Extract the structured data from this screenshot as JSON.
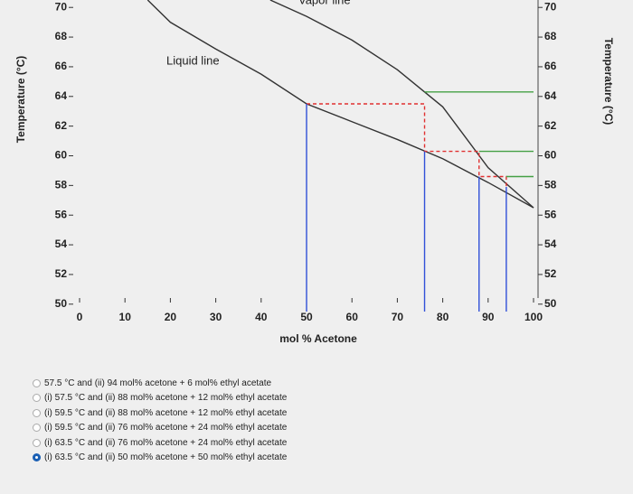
{
  "chart_data": {
    "type": "line",
    "x_label": "mol % Acetone",
    "y_label": "Temperature (°C)",
    "y2_label": "Temperature (°C)",
    "xlim": [
      0,
      100
    ],
    "xticks": [
      0,
      10,
      20,
      30,
      40,
      50,
      60,
      70,
      80,
      90,
      100
    ],
    "ylim": [
      49.5,
      70.5
    ],
    "yticks": [
      50,
      52,
      54,
      56,
      58,
      60,
      62,
      64,
      66,
      68,
      70
    ],
    "y2lim": [
      49.5,
      70.5
    ],
    "y2ticks": [
      50,
      52,
      54,
      56,
      58,
      60,
      62,
      64,
      66,
      68,
      70
    ],
    "series": [
      {
        "name": "Liquid line",
        "color": "#333333",
        "x": [
          15,
          20,
          30,
          40,
          50,
          60,
          70,
          80,
          90,
          100
        ],
        "values": [
          70.5,
          69,
          67.2,
          65.5,
          63.5,
          62.3,
          61.1,
          59.8,
          58.2,
          56.5
        ]
      },
      {
        "name": "Vapor line",
        "color": "#333333",
        "x": [
          42,
          50,
          60,
          70,
          80,
          90,
          100
        ],
        "values": [
          70.5,
          69.4,
          67.8,
          65.8,
          63.3,
          59.2,
          56.5
        ]
      },
      {
        "color": "#e03030",
        "dashed": true,
        "x": [
          50,
          76,
          76,
          88,
          88,
          94,
          94
        ],
        "values": [
          63.5,
          63.5,
          60.3,
          60.3,
          58.6,
          58.6,
          57.9
        ]
      },
      {
        "color": "#44a044",
        "x": [
          76,
          100
        ],
        "values": [
          64.3,
          64.3
        ]
      },
      {
        "color": "#44a044",
        "x": [
          88,
          100
        ],
        "values": [
          60.3,
          60.3
        ]
      },
      {
        "color": "#44a044",
        "x": [
          94,
          100
        ],
        "values": [
          58.6,
          58.6
        ]
      },
      {
        "color": "#3050d8",
        "x": [
          50,
          50
        ],
        "values": [
          63.5,
          49.5
        ]
      },
      {
        "color": "#3050d8",
        "x": [
          76,
          76
        ],
        "values": [
          60.3,
          49.5
        ]
      },
      {
        "color": "#3050d8",
        "x": [
          88,
          88
        ],
        "values": [
          58.6,
          49.5
        ]
      },
      {
        "color": "#3050d8",
        "x": [
          94,
          94
        ],
        "values": [
          57.9,
          49.5
        ]
      }
    ]
  },
  "options": [
    {
      "label": "57.5 °C and (ii) 94 mol% acetone + 6 mol% ethyl acetate",
      "selected": false
    },
    {
      "label": "(i) 57.5 °C and (ii) 88 mol% acetone + 12 mol% ethyl acetate",
      "selected": false
    },
    {
      "label": "(i) 59.5 °C and (ii) 88 mol% acetone + 12 mol% ethyl acetate",
      "selected": false
    },
    {
      "label": "(i) 59.5 °C and (ii) 76 mol% acetone + 24 mol% ethyl acetate",
      "selected": false
    },
    {
      "label": "(i) 63.5 °C and (ii) 76 mol% acetone + 24 mol% ethyl acetate",
      "selected": false
    },
    {
      "label": "(i) 63.5 °C and (ii) 50 mol% acetone + 50 mol% ethyl acetate",
      "selected": true
    }
  ]
}
